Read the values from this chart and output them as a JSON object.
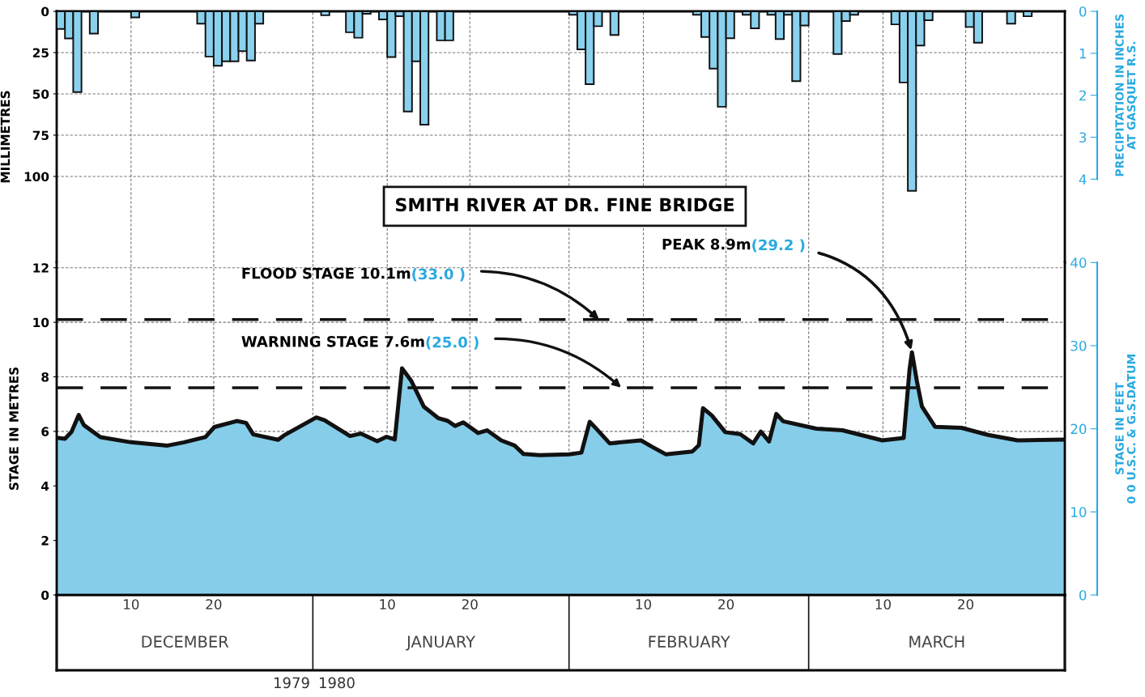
{
  "chart_data": [
    {
      "type": "bar",
      "title": "SMITH RIVER AT DR. FINE BRIDGE",
      "ylabel": "MILLIMETRES",
      "y2label": "PRECIPITATION IN INCHES\nAT GASQUET R.S.",
      "x": [
        "1979-12-01",
        "1979-12-02",
        "1979-12-03",
        "1979-12-05",
        "1979-12-10",
        "1979-12-18",
        "1979-12-19",
        "1979-12-20",
        "1979-12-21",
        "1979-12-22",
        "1979-12-23",
        "1979-12-24",
        "1979-12-25",
        "1980-01-02",
        "1980-01-05",
        "1980-01-06",
        "1980-01-07",
        "1980-01-09",
        "1980-01-10",
        "1980-01-11",
        "1980-01-12",
        "1980-01-13",
        "1980-01-14",
        "1980-01-16",
        "1980-01-17",
        "1980-02-01",
        "1980-02-02",
        "1980-02-03",
        "1980-02-04",
        "1980-02-06",
        "1980-02-16",
        "1980-02-17",
        "1980-02-18",
        "1980-02-19",
        "1980-02-20",
        "1980-02-22",
        "1980-02-23",
        "1980-02-25",
        "1980-02-26",
        "1980-02-27",
        "1980-02-28",
        "1980-02-29",
        "1980-03-04",
        "1980-03-05",
        "1980-03-06",
        "1980-03-11",
        "1980-03-12",
        "1980-03-13",
        "1980-03-14",
        "1980-03-15",
        "1980-03-20",
        "1980-03-21",
        "1980-03-25",
        "1980-03-27"
      ],
      "series": [
        {
          "color": "#8ad1ee",
          "values": [
            10.7,
            16.4,
            48.9,
            13.5,
            3.7,
            7.5,
            27.4,
            33,
            30.3,
            30.3,
            24.1,
            29.8,
            7.5,
            2.4,
            12.7,
            16,
            1.5,
            4.9,
            27.7,
            2.9,
            60.7,
            30.3,
            68.6,
            17.6,
            17.6,
            2.1,
            23,
            44.1,
            9,
            14.3,
            2.1,
            15.6,
            34.7,
            57.8,
            16.3,
            2.1,
            10.3,
            2.1,
            16.8,
            2.1,
            42.3,
            8.6,
            25.9,
            5.9,
            2.1,
            7.9,
            43.1,
            108.7,
            20.7,
            5.4,
            9.5,
            19,
            7.5,
            3
          ]
        }
      ],
      "xlim": [
        "1979-12-01",
        "1980-04-01"
      ],
      "xticks": [
        {
          "value": "1979-12-01",
          "label": null
        },
        {
          "value": "1979-12-10",
          "label": null
        },
        {
          "value": "1979-12-20",
          "label": null
        },
        {
          "value": "1980-01-01",
          "label": null
        },
        {
          "value": "1980-01-10",
          "label": null
        },
        {
          "value": "1980-01-20",
          "label": null
        },
        {
          "value": "1980-02-01",
          "label": null
        },
        {
          "value": "1980-02-10",
          "label": null
        },
        {
          "value": "1980-02-20",
          "label": null
        },
        {
          "value": "1980-03-01",
          "label": null
        },
        {
          "value": "1980-03-10",
          "label": null
        },
        {
          "value": "1980-03-20",
          "label": null
        },
        {
          "value": "1980-04-01",
          "label": null
        }
      ],
      "ylim": [
        152,
        0
      ],
      "yticks": [
        0,
        25,
        50,
        75,
        100
      ],
      "y2lim": [
        5.98,
        0
      ],
      "y2ticks": [
        0,
        1,
        2,
        3,
        4
      ],
      "grid": true,
      "tick_labels": "y"
    },
    {
      "type": "area",
      "ylabel": "STAGE IN METRES",
      "y2label": "STAGE IN FEET\n0 0 U.S.C. & G.S.DATUM",
      "x": [
        "1979-12-01T00:00",
        "1979-12-02T00:00",
        "1979-12-02T19:00",
        "1979-12-03T16:00",
        "1979-12-04T07:00",
        "1979-12-06T07:00",
        "1979-12-10T00:00",
        "1979-12-14T10:00",
        "1979-12-16T10:00",
        "1979-12-19T00:00",
        "1979-12-20T02:00",
        "1979-12-22T19:00",
        "1979-12-23T22:00",
        "1979-12-24T19:00",
        "1979-12-27T19:00",
        "1979-12-28T12:00",
        "1980-01-01T10:00",
        "1980-01-02T10:00",
        "1980-01-05T12:00",
        "1980-01-06T19:00",
        "1980-01-08T19:00",
        "1980-01-09T22:00",
        "1980-01-10T22:00",
        "1980-01-11T19:00",
        "1980-01-12T22:00",
        "1980-01-14T10:00",
        "1980-01-16T05:00",
        "1980-01-17T07:00",
        "1980-01-18T05:00",
        "1980-01-19T05:00",
        "1980-01-21T00:00",
        "1980-01-22T02:00",
        "1980-01-23T19:00",
        "1980-01-25T10:00",
        "1980-01-26T12:00",
        "1980-01-28T10:00",
        "1980-02-01T00:00",
        "1980-02-02T12:00",
        "1980-02-03T12:00",
        "1980-02-04T02:00",
        "1980-02-05T22:00",
        "1980-02-09T17:00",
        "1980-02-11T02:00",
        "1980-02-12T17:00",
        "1980-02-15T22:00",
        "1980-02-16T17:00",
        "1980-02-17T05:00",
        "1980-02-18T07:00",
        "1980-02-19T22:00",
        "1980-02-21T17:00",
        "1980-02-23T07:00",
        "1980-02-24T05:00",
        "1980-02-25T05:00",
        "1980-02-26T02:00",
        "1980-02-26T22:00",
        "1980-03-01T22:00",
        "1980-03-05T02:00",
        "1980-03-09T22:00",
        "1980-03-12T12:00",
        "1980-03-13T05:00",
        "1980-03-13T12:00",
        "1980-03-14T02:00",
        "1980-03-14T17:00",
        "1980-03-16T07:00",
        "1980-03-19T12:00",
        "1980-03-22T17:00",
        "1980-03-26T07:00",
        "1980-04-01T00:00"
      ],
      "series": [
        {
          "color": "#86cde9",
          "values": [
            5.77,
            5.73,
            5.98,
            6.6,
            6.23,
            5.79,
            5.6,
            5.48,
            5.6,
            5.79,
            6.16,
            6.38,
            6.31,
            5.89,
            5.69,
            5.85,
            6.51,
            6.41,
            5.83,
            5.92,
            5.64,
            5.8,
            5.7,
            8.31,
            7.85,
            6.91,
            6.48,
            6.39,
            6.2,
            6.33,
            5.94,
            6.04,
            5.67,
            5.48,
            5.17,
            5.13,
            5.16,
            5.22,
            6.35,
            6.17,
            5.56,
            5.67,
            5.43,
            5.16,
            5.26,
            5.49,
            6.85,
            6.58,
            5.97,
            5.9,
            5.56,
            5.99,
            5.63,
            6.64,
            6.37,
            6.1,
            6.04,
            5.67,
            5.76,
            8.27,
            8.9,
            7.86,
            6.91,
            6.17,
            6.13,
            5.87,
            5.67,
            5.7
          ]
        }
      ],
      "xlim": [
        "1979-12-01",
        "1980-04-01"
      ],
      "xticks": [
        {
          "value": "1979-12-01",
          "label": null
        },
        {
          "value": "1979-12-10",
          "label": "10"
        },
        {
          "value": "1979-12-20",
          "label": "20"
        },
        {
          "value": "1980-01-01",
          "label": null
        },
        {
          "value": "1980-01-10",
          "label": "10"
        },
        {
          "value": "1980-01-20",
          "label": "20"
        },
        {
          "value": "1980-02-01",
          "label": null
        },
        {
          "value": "1980-02-10",
          "label": "10"
        },
        {
          "value": "1980-02-20",
          "label": "20"
        },
        {
          "value": "1980-03-01",
          "label": null
        },
        {
          "value": "1980-03-10",
          "label": "10"
        },
        {
          "value": "1980-03-20",
          "label": "20"
        },
        {
          "value": "1980-04-01",
          "label": null
        }
      ],
      "x2lim": [
        "1979-12-01",
        "1980-04-01"
      ],
      "x2ticks": [
        {
          "value": "1979-12-16T12:00",
          "label": "DECEMBER"
        },
        {
          "value": "1980-01-16T12:00",
          "label": "JANUARY"
        },
        {
          "value": "1980-02-15T12:00",
          "label": "FEBRUARY"
        },
        {
          "value": "1980-03-16T12:00",
          "label": "MARCH"
        }
      ],
      "ylim": [
        0,
        12.2
      ],
      "yticks": [
        0,
        2,
        4,
        6,
        8,
        10,
        12
      ],
      "y2lim": [
        0,
        40.03
      ],
      "y2ticks": [
        0,
        10,
        20,
        30,
        40
      ],
      "ref_lines": [
        {
          "axis": "y",
          "value": 10.1,
          "label": "FLOOD STAGE 10.1m(33.0 )",
          "color": "#111111",
          "line_style": "dashed"
        },
        {
          "axis": "y",
          "value": 7.6,
          "label": "WARNING STAGE 7.6m(25.0 )",
          "color": "#111111",
          "line_style": "dashed"
        }
      ],
      "annotations": [
        {
          "text": "PEAK 8.9m(29.2 )",
          "x": "1980-03-13T12:00",
          "y": 8.9
        },
        "1979",
        "1980"
      ],
      "grid": true
    }
  ]
}
